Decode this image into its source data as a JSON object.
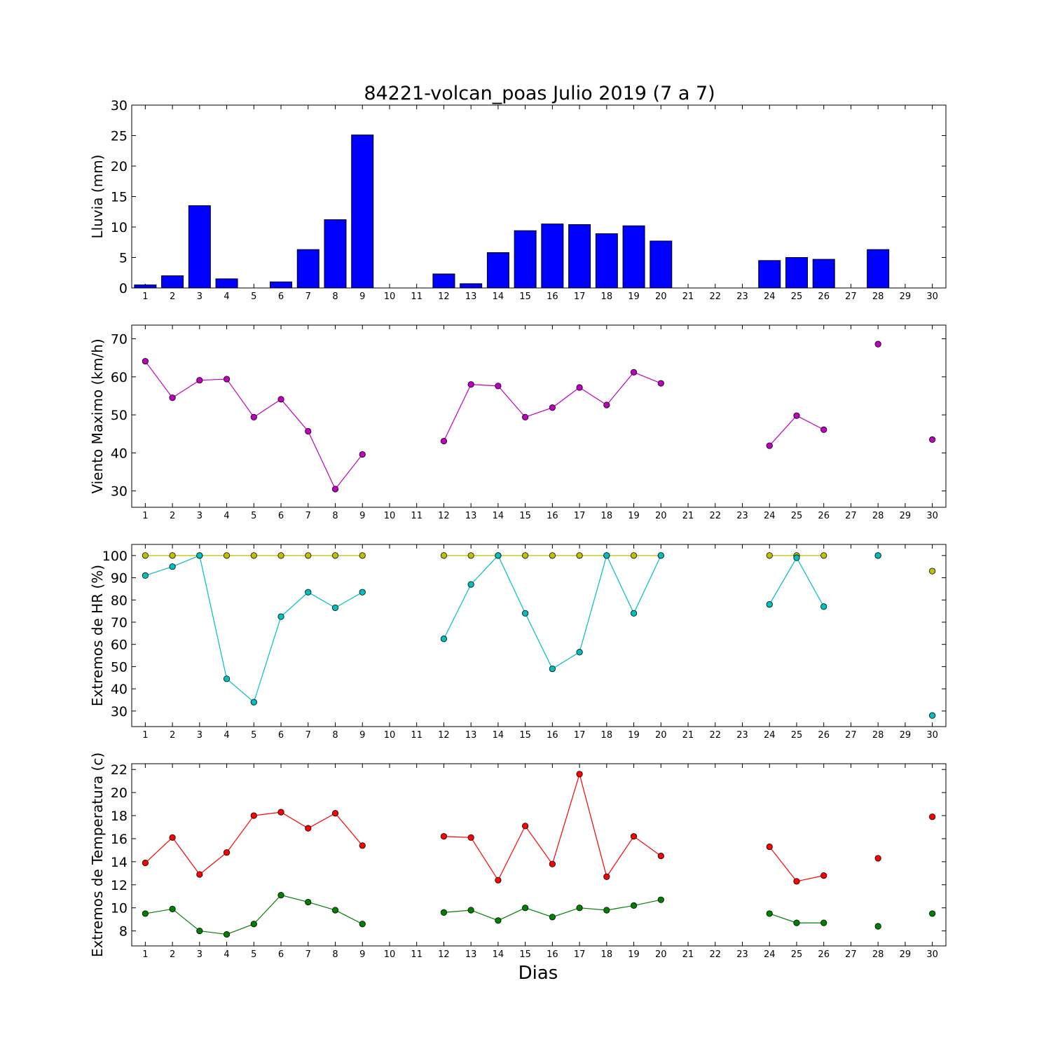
{
  "title": "84221-volcan_poas Julio 2019  (7 a 7)",
  "xlabel": "Dias",
  "colors": {
    "rain": "#0000ff",
    "wind": "#bf00bf",
    "hr_max": "#bfbf00",
    "hr_min": "#00bfbf",
    "t_max": "#ff0000",
    "t_min": "#008000"
  },
  "chart_data": [
    {
      "type": "bar",
      "ylabel": "Lluvia (mm)",
      "ylim": [
        0,
        30
      ],
      "yticks": [
        0,
        5,
        10,
        15,
        20,
        25,
        30
      ],
      "x": [
        1,
        2,
        3,
        4,
        5,
        6,
        7,
        8,
        9,
        10,
        11,
        12,
        13,
        14,
        15,
        16,
        17,
        18,
        19,
        20,
        21,
        22,
        23,
        24,
        25,
        26,
        27,
        28,
        29,
        30
      ],
      "series": [
        {
          "color": "#0000ff",
          "values": [
            0.5,
            2.0,
            13.5,
            1.5,
            0,
            1.0,
            6.3,
            11.2,
            25.1,
            0,
            0,
            2.3,
            0.7,
            5.8,
            9.4,
            10.5,
            10.4,
            8.9,
            10.2,
            7.7,
            0,
            0,
            0,
            4.5,
            5.0,
            4.7,
            0,
            6.3,
            0,
            0
          ]
        }
      ]
    },
    {
      "type": "line",
      "ylabel": "Viento Maximo (km/h)",
      "ylim": [
        25.7,
        73.6
      ],
      "yticks": [
        30,
        40,
        50,
        60,
        70
      ],
      "x": [
        1,
        2,
        3,
        4,
        5,
        6,
        7,
        8,
        9,
        10,
        11,
        12,
        13,
        14,
        15,
        16,
        17,
        18,
        19,
        20,
        21,
        22,
        23,
        24,
        25,
        26,
        27,
        28,
        29,
        30
      ],
      "series": [
        {
          "color": "#bf00bf",
          "values": [
            64.1,
            54.5,
            59.1,
            59.4,
            49.4,
            54.1,
            45.7,
            30.5,
            39.6,
            null,
            null,
            43.1,
            58.0,
            57.6,
            49.4,
            51.9,
            57.2,
            52.6,
            61.2,
            58.3,
            null,
            null,
            null,
            41.9,
            49.8,
            46.1,
            null,
            68.6,
            null,
            43.5
          ]
        }
      ]
    },
    {
      "type": "line",
      "ylabel": "Extremos de HR (%)",
      "ylim": [
        23,
        105
      ],
      "yticks": [
        30,
        40,
        50,
        60,
        70,
        80,
        90,
        100
      ],
      "x": [
        1,
        2,
        3,
        4,
        5,
        6,
        7,
        8,
        9,
        10,
        11,
        12,
        13,
        14,
        15,
        16,
        17,
        18,
        19,
        20,
        21,
        22,
        23,
        24,
        25,
        26,
        27,
        28,
        29,
        30
      ],
      "series": [
        {
          "color": "#bfbf00",
          "values": [
            100,
            100,
            100,
            100,
            100,
            100,
            100,
            100,
            100,
            null,
            null,
            100,
            100,
            100,
            100,
            100,
            100,
            100,
            100,
            100,
            null,
            null,
            null,
            100,
            100,
            100,
            null,
            100,
            null,
            93
          ]
        },
        {
          "color": "#00bfbf",
          "values": [
            91,
            95,
            100,
            44.5,
            34,
            72.5,
            83.5,
            76.5,
            83.5,
            null,
            null,
            62.5,
            87,
            100,
            74,
            49,
            56.5,
            100,
            74,
            100,
            null,
            null,
            null,
            78,
            99,
            77,
            null,
            100,
            null,
            28
          ]
        }
      ]
    },
    {
      "type": "line",
      "ylabel": "Extremos de Temperatura (c)",
      "ylim": [
        6.7,
        22.5
      ],
      "yticks": [
        8,
        10,
        12,
        14,
        16,
        18,
        20,
        22
      ],
      "x": [
        1,
        2,
        3,
        4,
        5,
        6,
        7,
        8,
        9,
        10,
        11,
        12,
        13,
        14,
        15,
        16,
        17,
        18,
        19,
        20,
        21,
        22,
        23,
        24,
        25,
        26,
        27,
        28,
        29,
        30
      ],
      "series": [
        {
          "color": "#ff0000",
          "values": [
            13.9,
            16.1,
            12.9,
            14.8,
            18.0,
            18.3,
            16.9,
            18.2,
            15.4,
            null,
            null,
            16.2,
            16.1,
            12.4,
            17.1,
            13.8,
            21.6,
            12.7,
            16.2,
            14.5,
            null,
            null,
            null,
            15.3,
            12.3,
            12.8,
            null,
            14.3,
            null,
            17.9
          ]
        },
        {
          "color": "#008000",
          "values": [
            9.5,
            9.9,
            8.0,
            7.7,
            8.6,
            11.1,
            10.5,
            9.8,
            8.6,
            null,
            null,
            9.6,
            9.8,
            8.9,
            10.0,
            9.2,
            10.0,
            9.8,
            10.2,
            10.7,
            null,
            null,
            null,
            9.5,
            8.7,
            8.7,
            null,
            8.4,
            null,
            9.5
          ]
        }
      ]
    }
  ]
}
